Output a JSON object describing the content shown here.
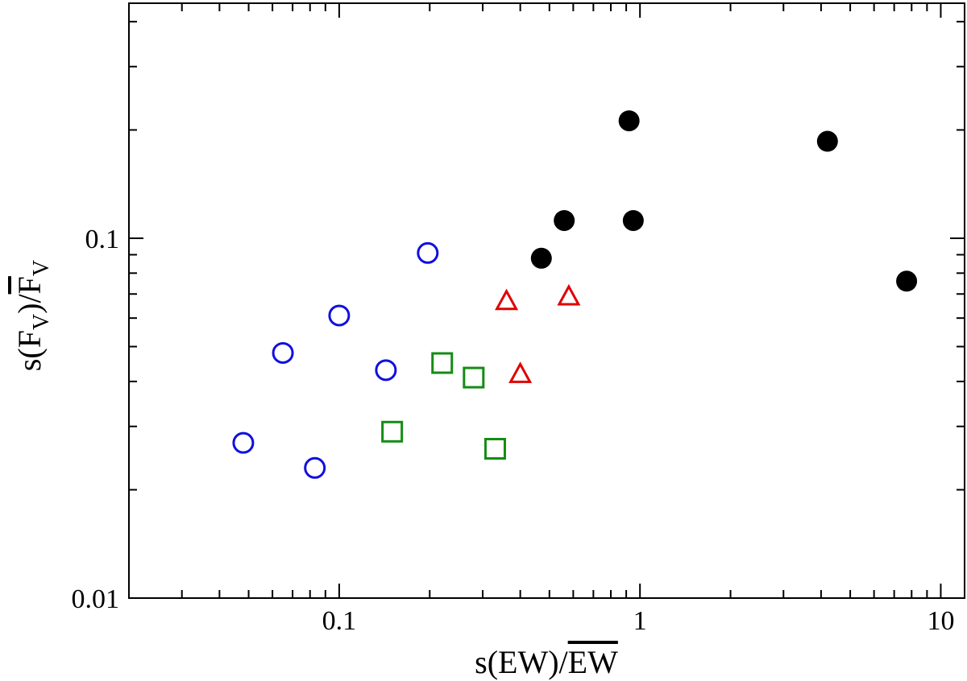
{
  "chart_data": {
    "type": "scatter",
    "xscale": "log",
    "yscale": "log",
    "xlim": [
      0.02,
      12
    ],
    "ylim": [
      0.01,
      0.45
    ],
    "grid": false,
    "xlabel": {
      "prefix": "s(EW)/",
      "overbar": "EW"
    },
    "ylabel": {
      "prefix": "s(F",
      "sub": "V",
      "mid": ")/",
      "overbar": "F",
      "sub2": "V"
    },
    "xticks": [
      {
        "value": 0.1,
        "label": "0.1"
      },
      {
        "value": 1,
        "label": "1"
      },
      {
        "value": 10,
        "label": "10"
      }
    ],
    "yticks": [
      {
        "value": 0.01,
        "label": "0.01"
      },
      {
        "value": 0.1,
        "label": "0.1"
      }
    ],
    "series": [
      {
        "marker": "circle-open",
        "color": "#1010dd",
        "points": [
          {
            "x": 0.048,
            "y": 0.027
          },
          {
            "x": 0.065,
            "y": 0.048
          },
          {
            "x": 0.083,
            "y": 0.023
          },
          {
            "x": 0.1,
            "y": 0.061
          },
          {
            "x": 0.143,
            "y": 0.043
          },
          {
            "x": 0.197,
            "y": 0.091
          }
        ]
      },
      {
        "marker": "square-open",
        "color": "#148c14",
        "points": [
          {
            "x": 0.15,
            "y": 0.029
          },
          {
            "x": 0.22,
            "y": 0.045
          },
          {
            "x": 0.28,
            "y": 0.041
          },
          {
            "x": 0.33,
            "y": 0.026
          }
        ]
      },
      {
        "marker": "triangle-open",
        "color": "#e00000",
        "points": [
          {
            "x": 0.36,
            "y": 0.067
          },
          {
            "x": 0.4,
            "y": 0.042
          },
          {
            "x": 0.58,
            "y": 0.069
          }
        ]
      },
      {
        "marker": "circle-filled",
        "color": "#000000",
        "points": [
          {
            "x": 0.47,
            "y": 0.088
          },
          {
            "x": 0.56,
            "y": 0.112
          },
          {
            "x": 0.92,
            "y": 0.212
          },
          {
            "x": 0.95,
            "y": 0.112
          },
          {
            "x": 4.2,
            "y": 0.186
          },
          {
            "x": 7.7,
            "y": 0.076
          }
        ]
      }
    ]
  }
}
